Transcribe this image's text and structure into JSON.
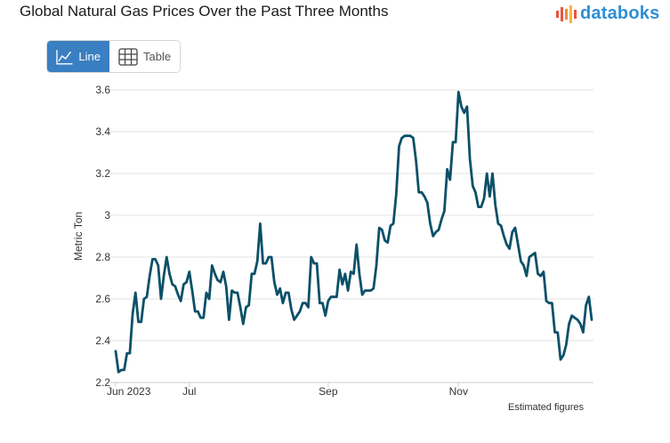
{
  "header": {
    "title": "Global Natural Gas Prices Over the Past Three Months",
    "brand": "databoks"
  },
  "toggle": {
    "line_label": "Line",
    "table_label": "Table",
    "active": "line"
  },
  "note": "Estimated figures",
  "colors": {
    "line": "#0b5068",
    "accent": "#3a7fc1",
    "brand": "#2f8fd5",
    "brand_mark": "#e8553e"
  },
  "chart_data": {
    "type": "line",
    "title": "Global Natural Gas Prices Over the Past Three Months",
    "ylabel": "Metric Ton",
    "xlabel": "",
    "ylim": [
      2.2,
      3.6
    ],
    "yticks": [
      2.2,
      2.4,
      2.6,
      2.8,
      3.0,
      3.2,
      3.4,
      3.6
    ],
    "ytick_labels": [
      "2.2",
      "2.4",
      "2.6",
      "2.8",
      "3",
      "3.2",
      "3.4",
      "3.6"
    ],
    "xtick_labels": [
      "Jun 2023",
      "Jul",
      "Sep",
      "Nov"
    ],
    "xtick_index": [
      0,
      26,
      75,
      121
    ],
    "grid": true,
    "series": [
      {
        "values": [
          2.35,
          2.25,
          2.26,
          2.26,
          2.34,
          2.34,
          2.53,
          2.63,
          2.49,
          2.49,
          2.6,
          2.61,
          2.71,
          2.79,
          2.79,
          2.76,
          2.6,
          2.71,
          2.8,
          2.72,
          2.67,
          2.66,
          2.62,
          2.59,
          2.67,
          2.68,
          2.73,
          2.64,
          2.54,
          2.54,
          2.51,
          2.51,
          2.63,
          2.6,
          2.76,
          2.72,
          2.69,
          2.68,
          2.73,
          2.66,
          2.5,
          2.64,
          2.63,
          2.63,
          2.56,
          2.48,
          2.56,
          2.57,
          2.72,
          2.72,
          2.78,
          2.96,
          2.77,
          2.77,
          2.8,
          2.8,
          2.68,
          2.62,
          2.65,
          2.58,
          2.63,
          2.63,
          2.55,
          2.5,
          2.52,
          2.54,
          2.58,
          2.58,
          2.56,
          2.8,
          2.77,
          2.77,
          2.58,
          2.58,
          2.52,
          2.59,
          2.61,
          2.61,
          2.61,
          2.74,
          2.67,
          2.72,
          2.64,
          2.73,
          2.72,
          2.86,
          2.72,
          2.62,
          2.64,
          2.64,
          2.64,
          2.65,
          2.76,
          2.94,
          2.93,
          2.88,
          2.87,
          2.95,
          2.96,
          3.1,
          3.33,
          3.37,
          3.38,
          3.38,
          3.38,
          3.37,
          3.26,
          3.11,
          3.11,
          3.09,
          3.06,
          2.96,
          2.9,
          2.92,
          2.93,
          2.98,
          3.02,
          3.22,
          3.17,
          3.35,
          3.35,
          3.59,
          3.52,
          3.49,
          3.52,
          3.27,
          3.14,
          3.11,
          3.04,
          3.04,
          3.08,
          3.2,
          3.09,
          3.2,
          3.05,
          2.96,
          2.95,
          2.9,
          2.86,
          2.84,
          2.92,
          2.94,
          2.86,
          2.78,
          2.76,
          2.71,
          2.8,
          2.81,
          2.82,
          2.72,
          2.71,
          2.73,
          2.59,
          2.58,
          2.58,
          2.44,
          2.44,
          2.31,
          2.33,
          2.38,
          2.48,
          2.52,
          2.51,
          2.5,
          2.48,
          2.44,
          2.57,
          2.61,
          2.5
        ]
      }
    ]
  }
}
